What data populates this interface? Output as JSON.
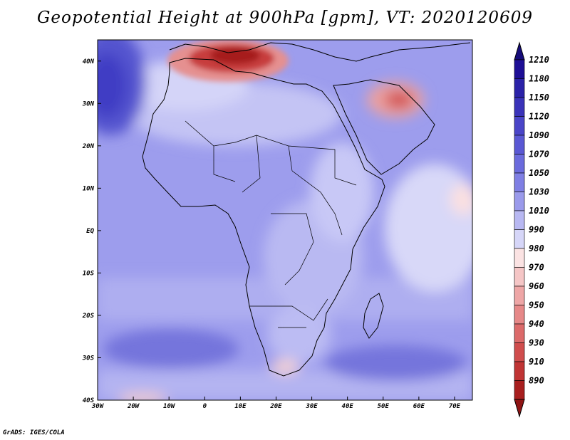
{
  "title": "Geopotential Height at 900hPa [gpm], VT: 2020120609",
  "credit": "GrADS: IGES/COLA",
  "map": {
    "lon_range": [
      -30,
      75
    ],
    "lat_range": [
      -40,
      45
    ],
    "lon_ticks": [
      {
        "value": -30,
        "label": "30W"
      },
      {
        "value": -20,
        "label": "20W"
      },
      {
        "value": -10,
        "label": "10W"
      },
      {
        "value": 0,
        "label": "0"
      },
      {
        "value": 10,
        "label": "10E"
      },
      {
        "value": 20,
        "label": "20E"
      },
      {
        "value": 30,
        "label": "30E"
      },
      {
        "value": 40,
        "label": "40E"
      },
      {
        "value": 50,
        "label": "50E"
      },
      {
        "value": 60,
        "label": "60E"
      },
      {
        "value": 70,
        "label": "70E"
      }
    ],
    "lat_ticks": [
      {
        "value": 40,
        "label": "40N"
      },
      {
        "value": 30,
        "label": "30N"
      },
      {
        "value": 20,
        "label": "20N"
      },
      {
        "value": 10,
        "label": "10N"
      },
      {
        "value": 0,
        "label": "EQ"
      },
      {
        "value": -10,
        "label": "10S"
      },
      {
        "value": -20,
        "label": "20S"
      },
      {
        "value": -30,
        "label": "30S"
      },
      {
        "value": -40,
        "label": "40S"
      }
    ]
  },
  "colorbar": {
    "levels": [
      {
        "label": "1210",
        "color": "#1e0f96"
      },
      {
        "label": "1180",
        "color": "#2b22a8"
      },
      {
        "label": "1150",
        "color": "#3a33b9"
      },
      {
        "label": "1120",
        "color": "#4a45c8"
      },
      {
        "label": "1090",
        "color": "#5a58d4"
      },
      {
        "label": "1070",
        "color": "#6b6bdd"
      },
      {
        "label": "1050",
        "color": "#7f7fe4"
      },
      {
        "label": "1030",
        "color": "#9a9aeb"
      },
      {
        "label": "1010",
        "color": "#b8b8f2"
      },
      {
        "label": "990",
        "color": "#d6d6f8"
      },
      {
        "label": "980",
        "color": "#fbe3e3"
      },
      {
        "label": "970",
        "color": "#f5c6c6"
      },
      {
        "label": "960",
        "color": "#eea6a6"
      },
      {
        "label": "950",
        "color": "#e68888"
      },
      {
        "label": "940",
        "color": "#dc6a6a"
      },
      {
        "label": "930",
        "color": "#d04d4d"
      },
      {
        "label": "910",
        "color": "#c03434"
      },
      {
        "label": "890",
        "color": "#a81f1f"
      }
    ],
    "top_cap_color": "#160c7a",
    "bottom_cap_color": "#8f1414"
  },
  "colors": {
    "background_field": "#9d9ded",
    "frame": "#000000"
  }
}
